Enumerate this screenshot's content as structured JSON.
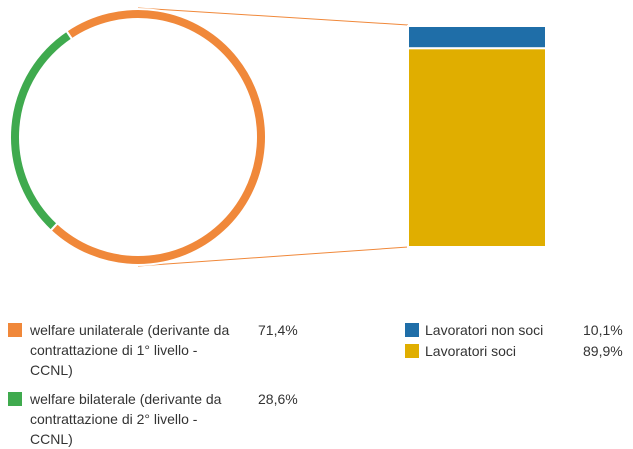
{
  "chart_data": [
    {
      "type": "pie",
      "categories": [
        "welfare unilaterale (derivante da contrattazione di 1° livello - CCNL)",
        "welfare bilaterale (derivante da contrattazione di 2° livello - CCNL)"
      ],
      "values": [
        71.4,
        28.6
      ],
      "value_labels": [
        "71,4%",
        "28,6%"
      ],
      "colors": [
        "#f0883a",
        "#3faa4e"
      ]
    },
    {
      "type": "bar",
      "stacked": true,
      "series": [
        {
          "name": "Lavoratori non soci",
          "color": "#1f6ea8",
          "values": [
            10.1
          ],
          "value_labels": [
            "10,1%"
          ]
        },
        {
          "name": "Lavoratori soci",
          "color": "#e0ae00",
          "values": [
            89.9
          ],
          "value_labels": [
            "89,9%"
          ]
        }
      ]
    }
  ]
}
